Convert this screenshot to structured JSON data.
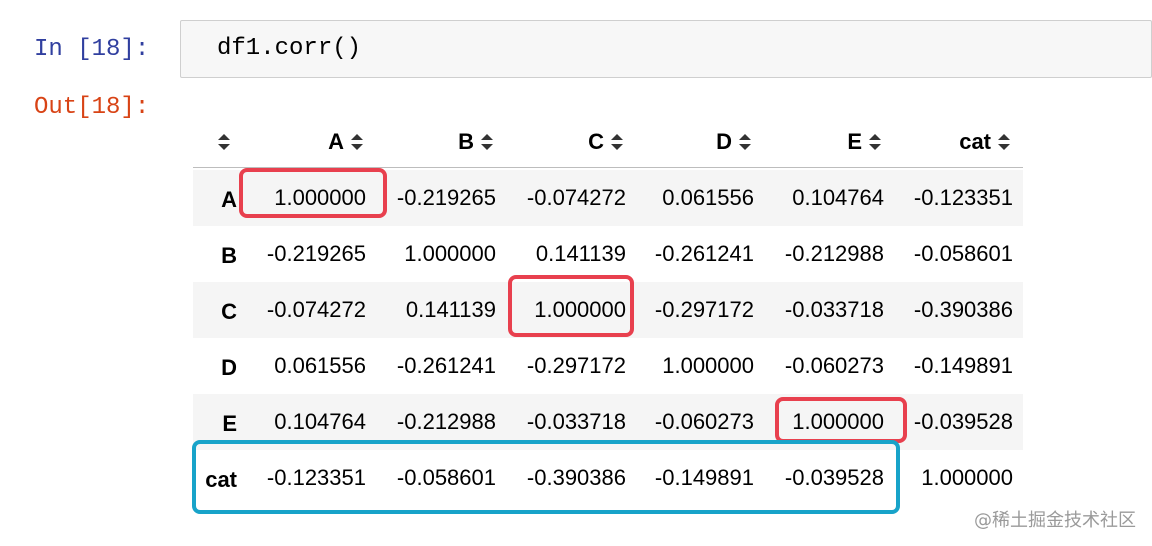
{
  "input_prompt": "In [18]:",
  "code": "df1.corr()",
  "output_prompt": "Out[18]:",
  "table": {
    "columns": [
      "A",
      "B",
      "C",
      "D",
      "E",
      "cat"
    ],
    "rows": [
      {
        "index": "A",
        "values": [
          "1.000000",
          "-0.219265",
          "-0.074272",
          "0.061556",
          "0.104764",
          "-0.123351"
        ]
      },
      {
        "index": "B",
        "values": [
          "-0.219265",
          "1.000000",
          "0.141139",
          "-0.261241",
          "-0.212988",
          "-0.058601"
        ]
      },
      {
        "index": "C",
        "values": [
          "-0.074272",
          "0.141139",
          "1.000000",
          "-0.297172",
          "-0.033718",
          "-0.390386"
        ]
      },
      {
        "index": "D",
        "values": [
          "0.061556",
          "-0.261241",
          "-0.297172",
          "1.000000",
          "-0.060273",
          "-0.149891"
        ]
      },
      {
        "index": "E",
        "values": [
          "0.104764",
          "-0.212988",
          "-0.033718",
          "-0.060273",
          "1.000000",
          "-0.039528"
        ]
      },
      {
        "index": "cat",
        "values": [
          "-0.123351",
          "-0.058601",
          "-0.390386",
          "-0.149891",
          "-0.039528",
          "1.000000"
        ]
      }
    ]
  },
  "watermark": "@稀土掘金技术社区"
}
